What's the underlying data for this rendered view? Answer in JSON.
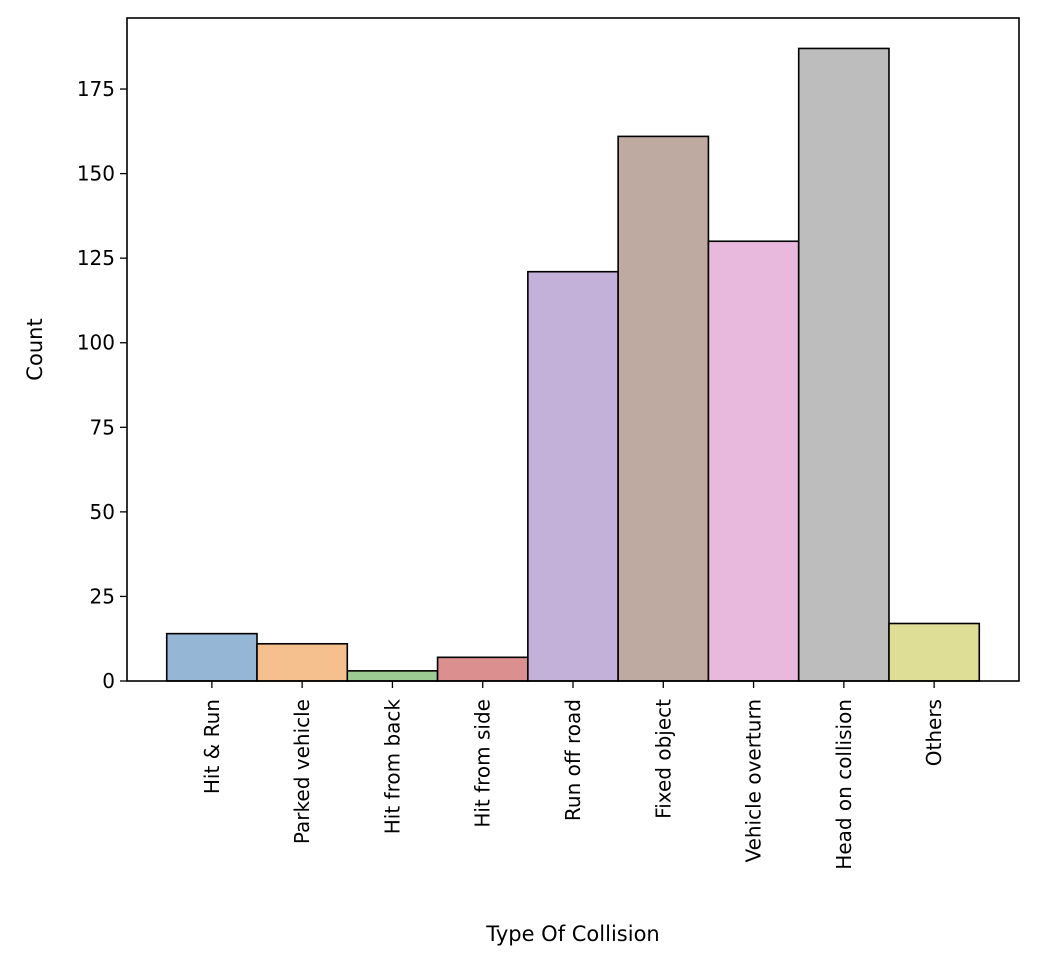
{
  "chart_data": {
    "type": "bar",
    "title": "",
    "xlabel": "Type Of Collision",
    "ylabel": "Count",
    "categories": [
      "Hit & Run",
      "Parked vehicle",
      "Hit from back",
      "Hit from side",
      "Run off road",
      "Fixed object",
      "Vehicle overturn",
      "Head on collision",
      "Others"
    ],
    "values": [
      14,
      11,
      3,
      7,
      121,
      161,
      130,
      187,
      17
    ],
    "ylim": [
      0,
      196
    ],
    "yticks": [
      0,
      25,
      50,
      75,
      100,
      125,
      150,
      175
    ],
    "grid": false,
    "legend": "none",
    "bar_colors": [
      "#95b6d4",
      "#f6c08e",
      "#9ccc91",
      "#db8f8f",
      "#c4b1d9",
      "#bfaaa2",
      "#e8b8dd",
      "#bdbdbd",
      "#dede97"
    ],
    "bar_edge_color": "#000000"
  }
}
